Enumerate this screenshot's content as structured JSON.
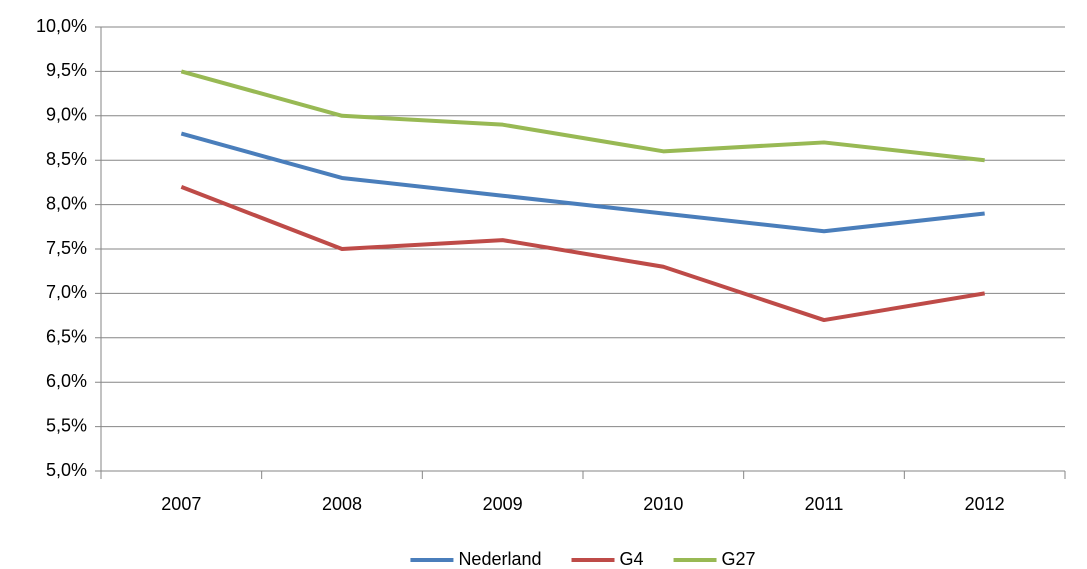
{
  "chart_data": {
    "type": "line",
    "categories": [
      "2007",
      "2008",
      "2009",
      "2010",
      "2011",
      "2012"
    ],
    "series": [
      {
        "name": "Nederland",
        "color": "#4a7ebb",
        "values": [
          8.8,
          8.3,
          8.1,
          7.9,
          7.7,
          7.9
        ]
      },
      {
        "name": "G4",
        "color": "#be4b48",
        "values": [
          8.2,
          7.5,
          7.6,
          7.3,
          6.7,
          7.0
        ]
      },
      {
        "name": "G27",
        "color": "#98b954",
        "values": [
          9.5,
          9.0,
          8.9,
          8.6,
          8.7,
          8.5
        ]
      }
    ],
    "ylim": [
      5.0,
      10.0
    ],
    "yticks": [
      {
        "value": 5.0,
        "label": "5,0%"
      },
      {
        "value": 5.5,
        "label": "5,5%"
      },
      {
        "value": 6.0,
        "label": "6,0%"
      },
      {
        "value": 6.5,
        "label": "6,5%"
      },
      {
        "value": 7.0,
        "label": "7,0%"
      },
      {
        "value": 7.5,
        "label": "7,5%"
      },
      {
        "value": 8.0,
        "label": "8,0%"
      },
      {
        "value": 8.5,
        "label": "8,5%"
      },
      {
        "value": 9.0,
        "label": "9,0%"
      },
      {
        "value": 9.5,
        "label": "9,5%"
      },
      {
        "value": 10.0,
        "label": "10,0%"
      }
    ],
    "grid": true,
    "legend": "bottom"
  }
}
